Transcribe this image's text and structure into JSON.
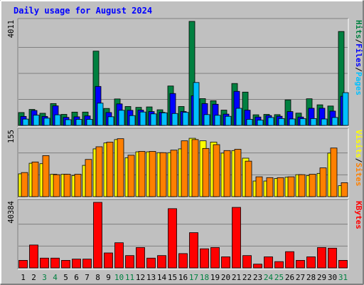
{
  "chart_data": {
    "type": "bar",
    "title": "Daily usage for August 2024",
    "days": [
      "1",
      "2",
      "3",
      "4",
      "5",
      "6",
      "7",
      "8",
      "9",
      "10",
      "11",
      "12",
      "13",
      "14",
      "15",
      "16",
      "17",
      "18",
      "19",
      "20",
      "21",
      "22",
      "23",
      "24",
      "25",
      "26",
      "27",
      "28",
      "29",
      "30",
      "31"
    ],
    "weekend_days": [
      "3",
      "4",
      "10",
      "11",
      "17",
      "18",
      "24",
      "25",
      "31"
    ],
    "colors": {
      "background": "#c0c0c0",
      "title": "#0000ff",
      "hits": "#008040",
      "files": "#0000ff",
      "pages": "#00c0ff",
      "visits": "#ffff00",
      "sites": "#ff8000",
      "kbytes": "#ff0000",
      "weekend_label": "#008040",
      "weekday_label": "#000000"
    },
    "panels": [
      {
        "id": "hits-files-pages",
        "max_label": "4011",
        "ylim": [
          0,
          4011
        ],
        "legend": [
          "Pages",
          "/",
          "Files",
          "/",
          "Hits"
        ],
        "legend_colors": [
          "#00c0ff",
          "#000000",
          "#0000ff",
          "#000000",
          "#008040"
        ],
        "series": [
          {
            "name": "Hits",
            "color": "#008040",
            "values": [
              496,
              616,
              468,
              842,
              426,
              513,
              514,
              2864,
              654,
              1020,
              729,
              696,
              713,
              603,
              1519,
              729,
              4011,
              1033,
              951,
              589,
              1616,
              1284,
              410,
              425,
              415,
              983,
              473,
              1027,
              794,
              747,
              3622
            ]
          },
          {
            "name": "Files",
            "color": "#0000ff",
            "values": [
              347,
              575,
              347,
              753,
              310,
              331,
              366,
              1503,
              496,
              829,
              581,
              589,
              534,
              504,
              1230,
              535,
              1143,
              842,
              816,
              436,
              1313,
              587,
              324,
              380,
              353,
              534,
              323,
              661,
              662,
              551,
              1124
            ]
          },
          {
            "name": "Pages",
            "color": "#00c0ff",
            "values": [
              244,
              395,
              280,
              409,
              221,
              233,
              233,
              858,
              334,
              583,
              379,
              517,
              445,
              486,
              459,
              503,
              1654,
              417,
              391,
              351,
              659,
              234,
              203,
              305,
              265,
              249,
              260,
              264,
              248,
              306,
              1263
            ]
          }
        ]
      },
      {
        "id": "visits-sites",
        "max_label": "155",
        "ylim": [
          0,
          155
        ],
        "legend": [
          "Sites",
          "/",
          "Visits"
        ],
        "legend_colors": [
          "#ff8000",
          "#000000",
          "#ffff00"
        ],
        "series": [
          {
            "name": "Visits",
            "color": "#ffff00",
            "values": [
              54,
              79,
              78,
              53,
              53,
              50,
              74,
              113,
              127,
              135,
              92,
              106,
              106,
              104,
              104,
              113,
              138,
              132,
              129,
              103,
              109,
              91,
              37,
              37,
              43,
              46,
              52,
              50,
              55,
              103,
              26
            ]
          },
          {
            "name": "Sites",
            "color": "#ff8000",
            "values": [
              57,
              82,
              97,
              52,
              53,
              53,
              88,
              118,
              129,
              137,
              98,
              107,
              107,
              104,
              110,
              132,
              135,
              114,
              123,
              109,
              112,
              84,
              47,
              45,
              45,
              47,
              52,
              53,
              68,
              115,
              33
            ]
          }
        ]
      },
      {
        "id": "kbytes",
        "max_label": "40384",
        "ylim": [
          0,
          40384
        ],
        "legend": [
          "KBytes"
        ],
        "legend_colors": [
          "#ff0000"
        ],
        "series": [
          {
            "name": "KBytes",
            "color": "#ff0000",
            "values": [
              4650,
              14109,
              6039,
              6039,
              4650,
              5426,
              5426,
              40384,
              9225,
              15502,
              7599,
              12565,
              6039,
              7599,
              36506,
              8823,
              21718,
              11780,
              12565,
              6813,
              37290,
              7599,
              2326,
              6813,
              3874,
              10009,
              4650,
              6813,
              12565,
              12174,
              4650
            ]
          }
        ]
      }
    ]
  }
}
